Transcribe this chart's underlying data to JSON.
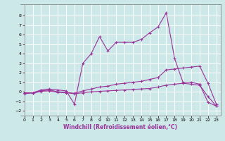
{
  "xlabel": "Windchill (Refroidissement éolien,°C)",
  "bg_color": "#cce8e8",
  "grid_color": "#b8d8d8",
  "line_color": "#993399",
  "xlim": [
    -0.5,
    23.5
  ],
  "ylim": [
    -2.5,
    9.2
  ],
  "xticks": [
    0,
    1,
    2,
    3,
    4,
    5,
    6,
    7,
    8,
    9,
    10,
    11,
    12,
    13,
    14,
    15,
    16,
    17,
    18,
    19,
    20,
    21,
    22,
    23
  ],
  "yticks": [
    -2,
    -1,
    0,
    1,
    2,
    3,
    4,
    5,
    6,
    7,
    8
  ],
  "line_zigzag_x": [
    0,
    1,
    2,
    3,
    4,
    5,
    6,
    7,
    8,
    9,
    10,
    11,
    12,
    13,
    14,
    15,
    16,
    17,
    18,
    19,
    20,
    21,
    22,
    23
  ],
  "line_zigzag_y": [
    -0.2,
    -0.1,
    0.2,
    0.3,
    0.2,
    0.1,
    -1.3,
    3.0,
    4.0,
    5.8,
    4.3,
    5.2,
    5.2,
    5.2,
    5.5,
    6.2,
    6.8,
    8.3,
    3.5,
    1.0,
    1.0,
    0.8,
    -1.1,
    -1.5
  ],
  "line_upper_x": [
    0,
    1,
    2,
    3,
    4,
    5,
    6,
    7,
    8,
    9,
    10,
    11,
    12,
    13,
    14,
    15,
    16,
    17,
    18,
    19,
    20,
    21,
    22,
    23
  ],
  "line_upper_y": [
    -0.1,
    -0.1,
    0.1,
    0.2,
    0.0,
    -0.05,
    -0.15,
    0.1,
    0.3,
    0.5,
    0.6,
    0.8,
    0.9,
    1.0,
    1.1,
    1.3,
    1.5,
    2.3,
    2.4,
    2.5,
    2.6,
    2.7,
    0.9,
    -1.3
  ],
  "line_lower_x": [
    0,
    1,
    2,
    3,
    4,
    5,
    6,
    7,
    8,
    9,
    10,
    11,
    12,
    13,
    14,
    15,
    16,
    17,
    18,
    19,
    20,
    21,
    22,
    23
  ],
  "line_lower_y": [
    -0.1,
    -0.15,
    0.05,
    0.1,
    -0.05,
    -0.1,
    -0.2,
    -0.1,
    0.0,
    0.05,
    0.1,
    0.15,
    0.2,
    0.25,
    0.3,
    0.35,
    0.5,
    0.7,
    0.8,
    0.9,
    0.8,
    0.7,
    -0.5,
    -1.5
  ]
}
